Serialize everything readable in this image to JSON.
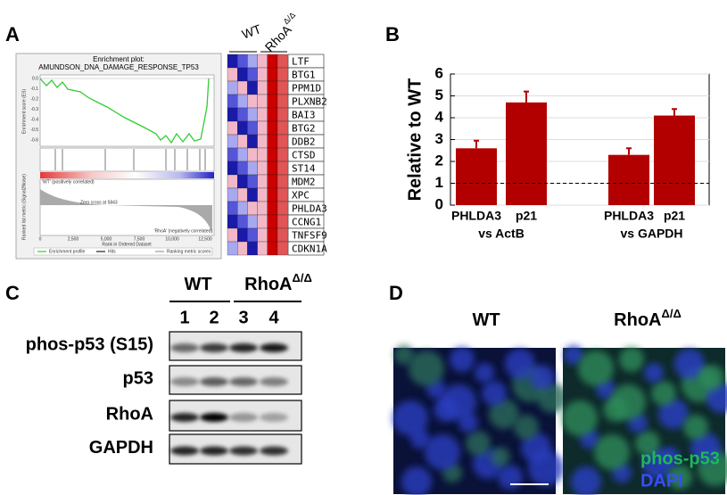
{
  "panel_labels": [
    "A",
    "B",
    "C",
    "D"
  ],
  "panel_a": {
    "enrichment_title": "Enrichment plot:",
    "gene_set": "AMUNDSON_DNA_DAMAGE_RESPONSE_TP53",
    "es_label": "Enrichment score (ES)",
    "metric_label": "Ranked list metric (Signal2Noise)",
    "x_label": "Rank in Ordered Dataset",
    "es_ticks": [
      "0.0",
      "-0.1",
      "-0.2",
      "-0.3",
      "-0.4",
      "-0.5",
      "-0.6"
    ],
    "rank_ticks": [
      "0",
      "2,500",
      "5,000",
      "7,500",
      "10,000",
      "12,500"
    ],
    "positive": "'WT' (positively correlated)",
    "negative": "'RhoA' (negatively correlated)",
    "zero_cross": "Zero cross at 5843",
    "legend": [
      "Enrichment profile",
      "Hits",
      "Ranking metric scores"
    ],
    "groups": [
      {
        "text": "WT"
      },
      {
        "text": "RhoA",
        "superscript": "Δ/Δ"
      }
    ],
    "genes": [
      "LTF",
      "BTG1",
      "PPM1D",
      "PLXNB2",
      "BAI3",
      "BTG2",
      "DDB2",
      "CTSD",
      "ST14",
      "MDM2",
      "XPC",
      "PHLDA3",
      "CCNG1",
      "TNFSF9",
      "CDKN1A"
    ]
  },
  "chart_data": {
    "type": "bar",
    "y_label": "Relative to WT",
    "categories": [
      "PHLDA3",
      "p21",
      "PHLDA3",
      "p21"
    ],
    "groups": [
      "vs ActB",
      "vs GAPDH"
    ],
    "values": [
      2.6,
      4.7,
      2.3,
      4.1
    ],
    "errors": [
      0.35,
      0.5,
      0.3,
      0.3
    ],
    "color": "#b20000",
    "reference_line": 1,
    "ylim": [
      0,
      6
    ],
    "yticks": [
      0,
      1,
      2,
      3,
      4,
      5,
      6
    ],
    "grid": true
  },
  "panel_c": {
    "groups": [
      {
        "text": "WT"
      },
      {
        "text": "RhoA",
        "superscript": "Δ/Δ"
      }
    ],
    "lanes": [
      "1",
      "2",
      "3",
      "4"
    ],
    "rows": [
      "phos-p53 (S15)",
      "p53",
      "RhoA",
      "GAPDH"
    ]
  },
  "panel_d": {
    "groups": [
      {
        "text": "WT"
      },
      {
        "text": "RhoA",
        "superscript": "Δ/Δ"
      }
    ],
    "stains": [
      "phos-p53",
      "DAPI"
    ]
  }
}
